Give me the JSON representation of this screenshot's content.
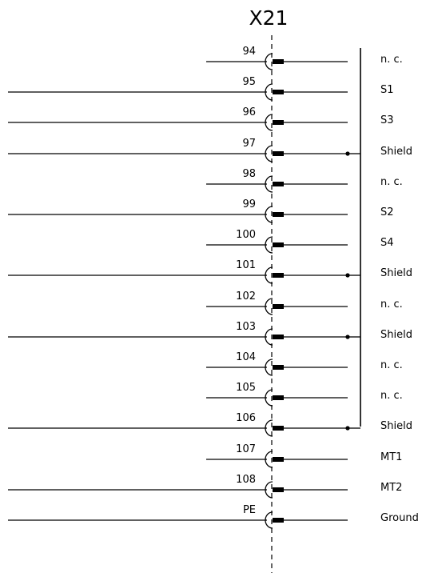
{
  "title": "X21",
  "terminals": [
    {
      "number": "94",
      "signal": "n. c.",
      "wire_left": "short",
      "shield": false
    },
    {
      "number": "95",
      "signal": "S1",
      "wire_left": "long",
      "shield": false
    },
    {
      "number": "96",
      "signal": "S3",
      "wire_left": "long",
      "shield": false
    },
    {
      "number": "97",
      "signal": "Shield",
      "wire_left": "long",
      "shield": true
    },
    {
      "number": "98",
      "signal": "n. c.",
      "wire_left": "short",
      "shield": false
    },
    {
      "number": "99",
      "signal": "S2",
      "wire_left": "long",
      "shield": false
    },
    {
      "number": "100",
      "signal": "S4",
      "wire_left": "short",
      "shield": false
    },
    {
      "number": "101",
      "signal": "Shield",
      "wire_left": "long",
      "shield": true
    },
    {
      "number": "102",
      "signal": "n. c.",
      "wire_left": "short",
      "shield": false
    },
    {
      "number": "103",
      "signal": "Shield",
      "wire_left": "long",
      "shield": true
    },
    {
      "number": "104",
      "signal": "n. c.",
      "wire_left": "short",
      "shield": false
    },
    {
      "number": "105",
      "signal": "n. c.",
      "wire_left": "short",
      "shield": false
    },
    {
      "number": "106",
      "signal": "Shield",
      "wire_left": "long",
      "shield": true
    },
    {
      "number": "107",
      "signal": "MT1",
      "wire_left": "short",
      "shield": false
    },
    {
      "number": "108",
      "signal": "MT2",
      "wire_left": "long",
      "shield": false
    },
    {
      "number": "PE",
      "signal": "Ground",
      "wire_left": "long",
      "shield": false
    }
  ],
  "colors": {
    "line": "#000000",
    "background": "#ffffff"
  }
}
